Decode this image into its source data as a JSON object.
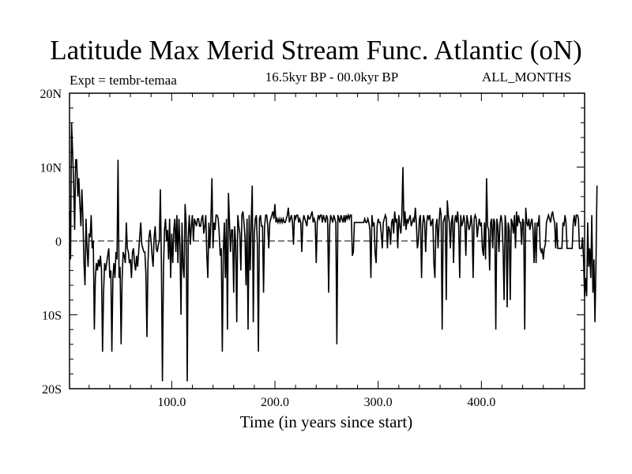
{
  "title": "Latitude Max Merid Stream Func. Atlantic (oN)",
  "experiment_label": "Expt = tembr-temaa",
  "period_label": "16.5kyr BP - 00.0kyr BP",
  "season_label": "ALL_MONTHS",
  "chart_data": {
    "type": "line",
    "title": "Latitude Max Merid Stream Func. Atlantic (oN)",
    "xlabel": "Time (in years since start)",
    "ylabel": "",
    "xlim": [
      1,
      500
    ],
    "ylim": [
      -20,
      20
    ],
    "x_ticks": [
      {
        "value": 100,
        "label": "100.0"
      },
      {
        "value": 200,
        "label": "200.0"
      },
      {
        "value": 300,
        "label": "300.0"
      },
      {
        "value": 400,
        "label": "400.0"
      }
    ],
    "y_ticks": [
      {
        "value": 20,
        "label": "20N"
      },
      {
        "value": 10,
        "label": "10N"
      },
      {
        "value": 0,
        "label": "0"
      },
      {
        "value": -10,
        "label": "10S"
      },
      {
        "value": -20,
        "label": "20S"
      }
    ],
    "reference_line": {
      "y": 0,
      "style": "dashed"
    },
    "grid": false,
    "line_color": "#000000",
    "series": [
      {
        "x_start": 1,
        "x_step": 1,
        "values": [
          4,
          -2.5,
          16,
          12,
          8,
          1.5,
          11,
          11,
          6,
          8.5,
          5,
          2,
          7,
          3,
          -3,
          -6,
          3,
          -1,
          -3.5,
          1,
          0.5,
          3.5,
          -1,
          0,
          -12,
          -5,
          -3,
          -4,
          -2.5,
          -3.5,
          -2,
          -4,
          -15,
          -7,
          -3,
          -4,
          -3,
          -2,
          -1,
          -5,
          -4,
          -15,
          -5,
          -3,
          -5,
          -1.5,
          -2.5,
          11,
          -5,
          -3.5,
          -14,
          -5,
          -1.5,
          -2,
          -3,
          2.5,
          -1,
          -1.5,
          -3,
          -2.5,
          -5,
          -1.5,
          -1,
          -3,
          -4,
          -2,
          -3.5,
          -1.5,
          0.5,
          2.5,
          -0.5,
          -1,
          -1.5,
          -1.5,
          -4.5,
          -13,
          -3,
          0.5,
          1.5,
          0,
          -2,
          -3.5,
          0.5,
          2,
          -1,
          -1.5,
          -0.5,
          0,
          7,
          -3,
          -19,
          -4,
          1.5,
          3,
          0,
          1.5,
          -2.5,
          3,
          -5,
          1,
          -3,
          1.5,
          3,
          -1.5,
          3.5,
          -3,
          3,
          -0.5,
          -10,
          2.5,
          -3.5,
          -5,
          5,
          2.5,
          -19,
          0.5,
          3.5,
          -0.5,
          2,
          3.5,
          0,
          3,
          2.5,
          2,
          3,
          3,
          2,
          2,
          3,
          3.5,
          1,
          2,
          3.5,
          -2,
          -5,
          2.5,
          -1,
          3,
          8.5,
          -1,
          2.5,
          1.5,
          3.5,
          3.5,
          3,
          1,
          -2,
          -1,
          -15,
          -1.5,
          2.5,
          -5,
          3,
          -12,
          6.5,
          2.5,
          -1.5,
          1.5,
          1.5,
          -7,
          2,
          -0.5,
          -11,
          3.5,
          2,
          1,
          -4,
          3.5,
          4,
          2.5,
          0.5,
          -6,
          3,
          -12,
          3.5,
          -4,
          2.5,
          7.5,
          -11,
          1,
          3,
          3.5,
          -0.5,
          -15,
          3,
          3.5,
          2,
          2,
          -7,
          2,
          3.5,
          3.5,
          2,
          -1,
          2.5,
          3,
          3.5,
          4,
          3,
          5,
          2.5,
          3,
          2.5,
          3,
          2.5,
          3,
          2.5,
          3,
          2.5,
          2.5,
          3,
          3.5,
          4.5,
          2.5,
          3,
          3.5,
          2.5,
          -0.5,
          3.5,
          3,
          3.5,
          3.5,
          2.5,
          3,
          2.5,
          -1.5,
          2.5,
          3.5,
          3,
          2.5,
          2,
          3.5,
          3,
          3,
          3.5,
          4,
          2.5,
          3,
          2.5,
          -3,
          2.5,
          3.5,
          3,
          3.5,
          3.5,
          2.5,
          3.5,
          3,
          2.5,
          3.5,
          3,
          -7,
          2,
          3.5,
          3,
          2.5,
          3.5,
          3,
          2.5,
          -14,
          3.5,
          3,
          2.5,
          3.5,
          3,
          2.5,
          3.5,
          2.5,
          3.5,
          3,
          3.5,
          3,
          3.5,
          3.5,
          -2,
          -1.5,
          2.5,
          2.5,
          2.5,
          2.5,
          2.5,
          2.5,
          2.5,
          2.5,
          2.5,
          2.5,
          3,
          2.5,
          2.5,
          3,
          2.5,
          1.5,
          -5,
          3.5,
          2,
          2.5,
          -1.5,
          -3,
          2,
          3,
          2.5,
          2.5,
          1,
          -1,
          2.5,
          3,
          3.5,
          3,
          -1,
          2,
          1.5,
          -0.5,
          2.5,
          3,
          1,
          4,
          2.5,
          3,
          -1,
          3.5,
          2,
          1,
          3.5,
          10,
          2,
          4,
          1.5,
          3,
          2.5,
          3,
          3.5,
          2,
          2.5,
          3,
          2.5,
          4.5,
          2.5,
          -1,
          0,
          3,
          3.5,
          -5,
          2,
          3.5,
          2.5,
          -1.5,
          2.5,
          3.5,
          3,
          3.5,
          2,
          2.5,
          3,
          -3,
          -5,
          2,
          3,
          -1,
          2.5,
          4.5,
          3.5,
          -12,
          2.5,
          3,
          3.5,
          -8,
          5.5,
          3.5,
          2.5,
          -1,
          2.5,
          3.5,
          -3,
          2.5,
          3.5,
          2.5,
          4,
          2,
          -5,
          3.5,
          2,
          2.5,
          3.5,
          2.5,
          -2,
          3.5,
          2.5,
          1.5,
          2,
          3.5,
          2,
          -5,
          3,
          3.5,
          3,
          0.5,
          2,
          3,
          2,
          2.5,
          -1,
          -2,
          2.5,
          -2.5,
          8.5,
          2,
          1.5,
          -4,
          2.5,
          3,
          -1,
          3,
          2.5,
          -12,
          3,
          2,
          -1.5,
          2.5,
          3.5,
          2.5,
          -1,
          -8,
          3.5,
          2,
          -9,
          2.5,
          1.5,
          -8,
          3,
          2.5,
          1,
          3.5,
          -1,
          4,
          2,
          3.5,
          2.5,
          2.5,
          -0.5,
          3,
          2.5,
          -12,
          4.5,
          2.5,
          2,
          3,
          1.5,
          2.5,
          3,
          1.5,
          -3,
          2.5,
          -3,
          2.5,
          2,
          3.5,
          -1,
          -1.5,
          -1,
          -2.5,
          -1,
          -0.5,
          2.5,
          3,
          3.5,
          3,
          2.5,
          3.5,
          4,
          3,
          2.5,
          -1,
          2.5,
          -1,
          -1,
          -1,
          -1,
          -1,
          2.5,
          2,
          3.5,
          2.5,
          -1,
          -1,
          -1,
          -1,
          -1,
          -1,
          2.5,
          3.5,
          2,
          3.5,
          3.5,
          3,
          -1,
          -1,
          -1,
          0.5,
          -2.5,
          -7.5,
          -5,
          -7.5,
          2.5,
          -3.5,
          -1,
          -5,
          3.5,
          -7,
          -2.5,
          -11,
          -3,
          7.5
        ]
      }
    ]
  }
}
